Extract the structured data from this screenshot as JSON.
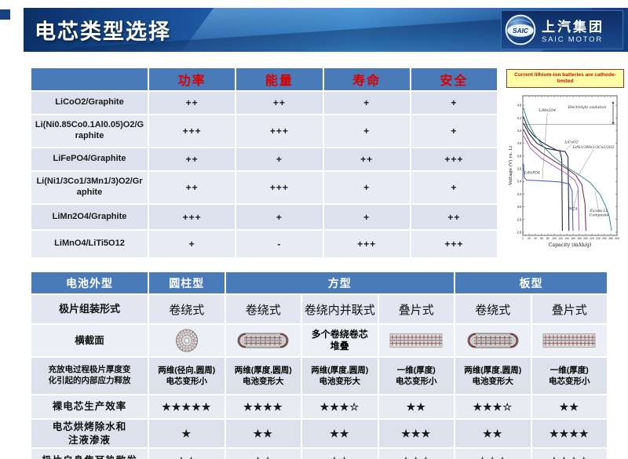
{
  "page": {
    "title": "电芯类型选择"
  },
  "logo": {
    "name_cn": "上汽集团",
    "name_en": "SAIC MOTOR",
    "emblem_text": "SAIC"
  },
  "colors": {
    "header_blue": "#4a7ab8",
    "criteria_red": "#d90000",
    "row_dark": "#dce1ed",
    "row_light": "#e9ebf4",
    "caption_bg": "#ffffa8",
    "caption_text": "#cc1111"
  },
  "materials_table": {
    "criteria": [
      "功率",
      "能量",
      "寿命",
      "安全"
    ],
    "rows": [
      {
        "material": "LiCoO2/Graphite",
        "ratings": [
          "++",
          "++",
          "+",
          "+"
        ]
      },
      {
        "material": "Li(Ni0.85Co0.1Al0.05)O2/Graphite",
        "ratings": [
          "+++",
          "+++",
          "+",
          "+"
        ]
      },
      {
        "material": "LiFePO4/Graphite",
        "ratings": [
          "++",
          "+",
          "++",
          "+++"
        ]
      },
      {
        "material": "Li(Ni1/3Co1/3Mn1/3)O2/Graphite",
        "ratings": [
          "++",
          "+++",
          "+",
          "+"
        ]
      },
      {
        "material": "LiMn2O4/Graphite",
        "ratings": [
          "+++",
          "+",
          "+",
          "++"
        ]
      },
      {
        "material": "LiMnO4/LiTi5O12",
        "ratings": [
          "+",
          "-",
          "+++",
          "+++"
        ]
      }
    ]
  },
  "chart_caption": "Current lithium-ion batteries are cathode-limited",
  "chart_data": {
    "type": "line",
    "title": "",
    "xlabel": "Capacity (mAh/g)",
    "ylabel": "Voltage (V) vs. Li",
    "xlim": [
      0,
      300
    ],
    "ylim": [
      2.55,
      4.75
    ],
    "x_tick_step": 20,
    "y_tick_min": 2.6,
    "y_tick_max": 4.6,
    "y_tick_step": 0.2,
    "grid": false,
    "electrolyte_limit_v": 4.3,
    "series": [
      {
        "name": "LiMn2O4",
        "color": "#15152e",
        "points": [
          [
            2,
            4.42
          ],
          [
            15,
            4.25
          ],
          [
            35,
            4.12
          ],
          [
            60,
            4.02
          ],
          [
            85,
            3.95
          ],
          [
            105,
            3.9
          ],
          [
            118,
            3.88
          ],
          [
            124,
            3.75
          ],
          [
            126,
            2.62
          ]
        ]
      },
      {
        "name": "LiCoO2",
        "color": "#101048",
        "points": [
          [
            2,
            4.32
          ],
          [
            20,
            4.15
          ],
          [
            45,
            4.0
          ],
          [
            75,
            3.92
          ],
          [
            110,
            3.89
          ],
          [
            135,
            3.87
          ],
          [
            144,
            3.78
          ],
          [
            147,
            2.62
          ]
        ]
      },
      {
        "name": "LiNi1/3Mn1/3Co1/3O2",
        "color": "#7a1f3d",
        "points": [
          [
            2,
            4.22
          ],
          [
            25,
            4.0
          ],
          [
            60,
            3.85
          ],
          [
            100,
            3.72
          ],
          [
            140,
            3.6
          ],
          [
            168,
            3.5
          ],
          [
            188,
            3.35
          ],
          [
            198,
            3.05
          ],
          [
            201,
            2.62
          ]
        ]
      },
      {
        "name": "NCA",
        "color": "#a85ec2",
        "points": [
          [
            2,
            4.12
          ],
          [
            25,
            3.92
          ],
          [
            60,
            3.76
          ],
          [
            100,
            3.64
          ],
          [
            140,
            3.52
          ],
          [
            165,
            3.42
          ],
          [
            176,
            3.3
          ],
          [
            179,
            2.62
          ]
        ]
      },
      {
        "name": "LiFePO4",
        "color": "#3c4fd0",
        "points": [
          [
            2,
            3.68
          ],
          [
            5,
            3.46
          ],
          [
            12,
            3.42
          ],
          [
            60,
            3.41
          ],
          [
            120,
            3.39
          ],
          [
            148,
            3.36
          ],
          [
            157,
            3.25
          ],
          [
            160,
            2.62
          ]
        ]
      },
      {
        "name": "Excess Li Composite",
        "color": "#2f8f8a",
        "points": [
          [
            2,
            4.56
          ],
          [
            15,
            4.35
          ],
          [
            35,
            4.15
          ],
          [
            65,
            3.95
          ],
          [
            100,
            3.78
          ],
          [
            140,
            3.62
          ],
          [
            180,
            3.5
          ],
          [
            215,
            3.38
          ],
          [
            245,
            3.2
          ],
          [
            263,
            3.02
          ],
          [
            275,
            2.85
          ],
          [
            283,
            2.62
          ]
        ]
      }
    ],
    "annotations": [
      {
        "lines": [
          "LiMn2O4"
        ],
        "x": 78,
        "y": 4.5,
        "lead": [
          62,
          3.44
        ]
      },
      {
        "lines": [
          "Electrolyte oxidation"
        ],
        "x": 205,
        "y": 4.55
      },
      {
        "lines": [
          "LiCoO2"
        ],
        "x": 155,
        "y": 4.0,
        "lead": [
          132,
          3.88
        ]
      },
      {
        "lines": [
          "LiNi1/3Mn1/3Co1/3O2"
        ],
        "x": 225,
        "y": 3.92,
        "lead": [
          175,
          3.48
        ]
      },
      {
        "lines": [
          "LiFePO4"
        ],
        "x": 30,
        "y": 3.52
      },
      {
        "lines": [
          "NCA"
        ],
        "x": 160,
        "y": 2.95,
        "lead": [
          176,
          3.28
        ]
      },
      {
        "lines": [
          "Excess Li,",
          "Composite"
        ],
        "x": 243,
        "y": 2.92,
        "lead": [
          230,
          3.24
        ]
      }
    ]
  },
  "form_table": {
    "corner_label": "电池外型",
    "shape_groups": [
      {
        "label": "圆柱型",
        "span": 1
      },
      {
        "label": "方型",
        "span": 3
      },
      {
        "label": "板型",
        "span": 2
      }
    ],
    "rows": [
      {
        "label": "极片组装形式",
        "kind": "assembly",
        "cells": [
          {
            "text": "卷绕式"
          },
          {
            "text": "卷绕式"
          },
          {
            "text": "卷绕内并联式"
          },
          {
            "text": "叠片式"
          },
          {
            "text": "卷绕式"
          },
          {
            "text": "叠片式"
          }
        ]
      },
      {
        "label": "横截面",
        "kind": "section",
        "cells": [
          {
            "icon": "spiral-cross-section-icon"
          },
          {
            "icon": "flat-wound-cross-section-icon"
          },
          {
            "text": "多个卷绕卷芯\n堆叠"
          },
          {
            "icon": "stacked-cross-section-icon"
          },
          {
            "icon": "flat-wound-cross-section-icon"
          },
          {
            "icon": "stacked-cross-section-icon"
          }
        ]
      },
      {
        "label": "充放电过程极片厚度变\n化引起的内部应力释放",
        "kind": "stress",
        "cells": [
          {
            "text": "两维(径向,圆周)\n电芯变形小"
          },
          {
            "text": "两维(厚度,圆周)\n电池变形大"
          },
          {
            "text": "两维(厚度,圆周)\n电池变形大"
          },
          {
            "text": "一维(厚度)\n电芯变形小"
          },
          {
            "text": "两维(厚度,圆周)\n电池变形大"
          },
          {
            "text": "一维(厚度)\n电芯变形小"
          }
        ]
      },
      {
        "label": "裸电芯生产效率",
        "kind": "stars0",
        "cells": [
          {
            "text": "★★★★★"
          },
          {
            "text": "★★★★"
          },
          {
            "text": "★★★☆"
          },
          {
            "text": "★★"
          },
          {
            "text": "★★★☆"
          },
          {
            "text": "★★"
          }
        ]
      },
      {
        "label": "电芯烘烤除水和\n注液渗液",
        "kind": "stars1",
        "cells": [
          {
            "text": "★"
          },
          {
            "text": "★★"
          },
          {
            "text": "★★"
          },
          {
            "text": "★★★"
          },
          {
            "text": "★★"
          },
          {
            "text": "★★★★"
          }
        ]
      },
      {
        "label": "极片自身焦耳热散发",
        "kind": "stars2",
        "cells": [
          {
            "text": "★☆"
          },
          {
            "text": "★★"
          },
          {
            "text": "★★"
          },
          {
            "text": "★★☆"
          },
          {
            "text": "★★★"
          },
          {
            "text": "★★★☆"
          }
        ]
      }
    ]
  }
}
